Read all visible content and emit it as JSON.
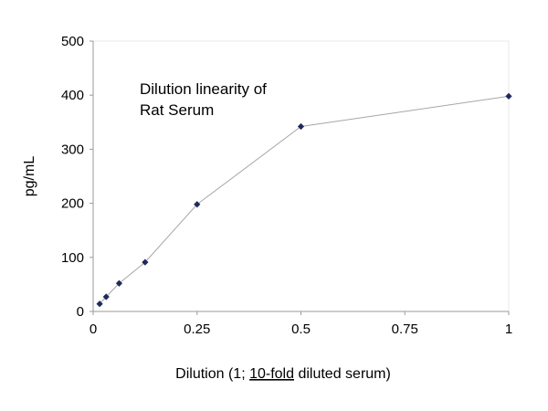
{
  "chart_data": {
    "type": "scatter",
    "title_lines": [
      "Dilution linearity of",
      "Rat Serum"
    ],
    "xlabel_prefix": "Dilution (1; ",
    "xlabel_underlined": "10-fold",
    "xlabel_suffix": " diluted serum)",
    "ylabel": "pg/mL",
    "xlim": [
      0,
      1
    ],
    "ylim": [
      0,
      500
    ],
    "x_ticks": [
      {
        "value": 0,
        "label": "0"
      },
      {
        "value": 0.25,
        "label": "0.25"
      },
      {
        "value": 0.5,
        "label": "0.5"
      },
      {
        "value": 0.75,
        "label": "0.75"
      },
      {
        "value": 1,
        "label": "1"
      }
    ],
    "y_ticks": [
      {
        "value": 0,
        "label": "0"
      },
      {
        "value": 100,
        "label": "100"
      },
      {
        "value": 200,
        "label": "200"
      },
      {
        "value": 300,
        "label": "300"
      },
      {
        "value": 400,
        "label": "400"
      },
      {
        "value": 500,
        "label": "500"
      }
    ],
    "grid": false,
    "series": [
      {
        "marker_color": "#1f2a5c",
        "line_color": "#a6a6a6",
        "points": [
          {
            "x": 0.0156,
            "y": 14
          },
          {
            "x": 0.03125,
            "y": 27
          },
          {
            "x": 0.0625,
            "y": 52
          },
          {
            "x": 0.125,
            "y": 91
          },
          {
            "x": 0.25,
            "y": 198
          },
          {
            "x": 0.5,
            "y": 342
          },
          {
            "x": 1,
            "y": 398
          }
        ]
      }
    ]
  }
}
